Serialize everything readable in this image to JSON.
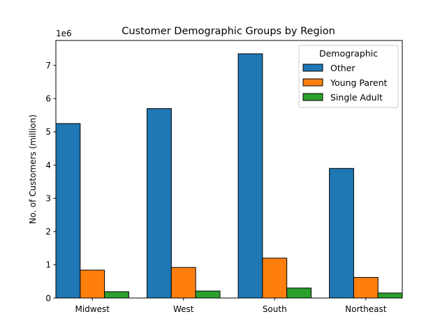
{
  "chart_data": {
    "type": "bar",
    "title": "Customer Demographic Groups by Region",
    "xlabel": "",
    "ylabel": "No. of Customers (million)",
    "y_offset_text": "1e6",
    "categories": [
      "Midwest",
      "West",
      "South",
      "Northeast"
    ],
    "series": [
      {
        "name": "Other",
        "color": "#1f77b4",
        "values": [
          5250000,
          5700000,
          7350000,
          3900000
        ]
      },
      {
        "name": "Young Parent",
        "color": "#ff7f0e",
        "values": [
          840000,
          920000,
          1200000,
          620000
        ]
      },
      {
        "name": "Single Adult",
        "color": "#2ca02c",
        "values": [
          190000,
          210000,
          300000,
          150000
        ]
      }
    ],
    "ylim": [
      0,
      7750000
    ],
    "yticks": [
      0,
      1000000,
      2000000,
      3000000,
      4000000,
      5000000,
      6000000,
      7000000
    ],
    "ytick_labels": [
      "0",
      "1",
      "2",
      "3",
      "4",
      "5",
      "6",
      "7"
    ],
    "grid": false,
    "legend": {
      "title": "Demographic",
      "placement": "top-right"
    }
  }
}
